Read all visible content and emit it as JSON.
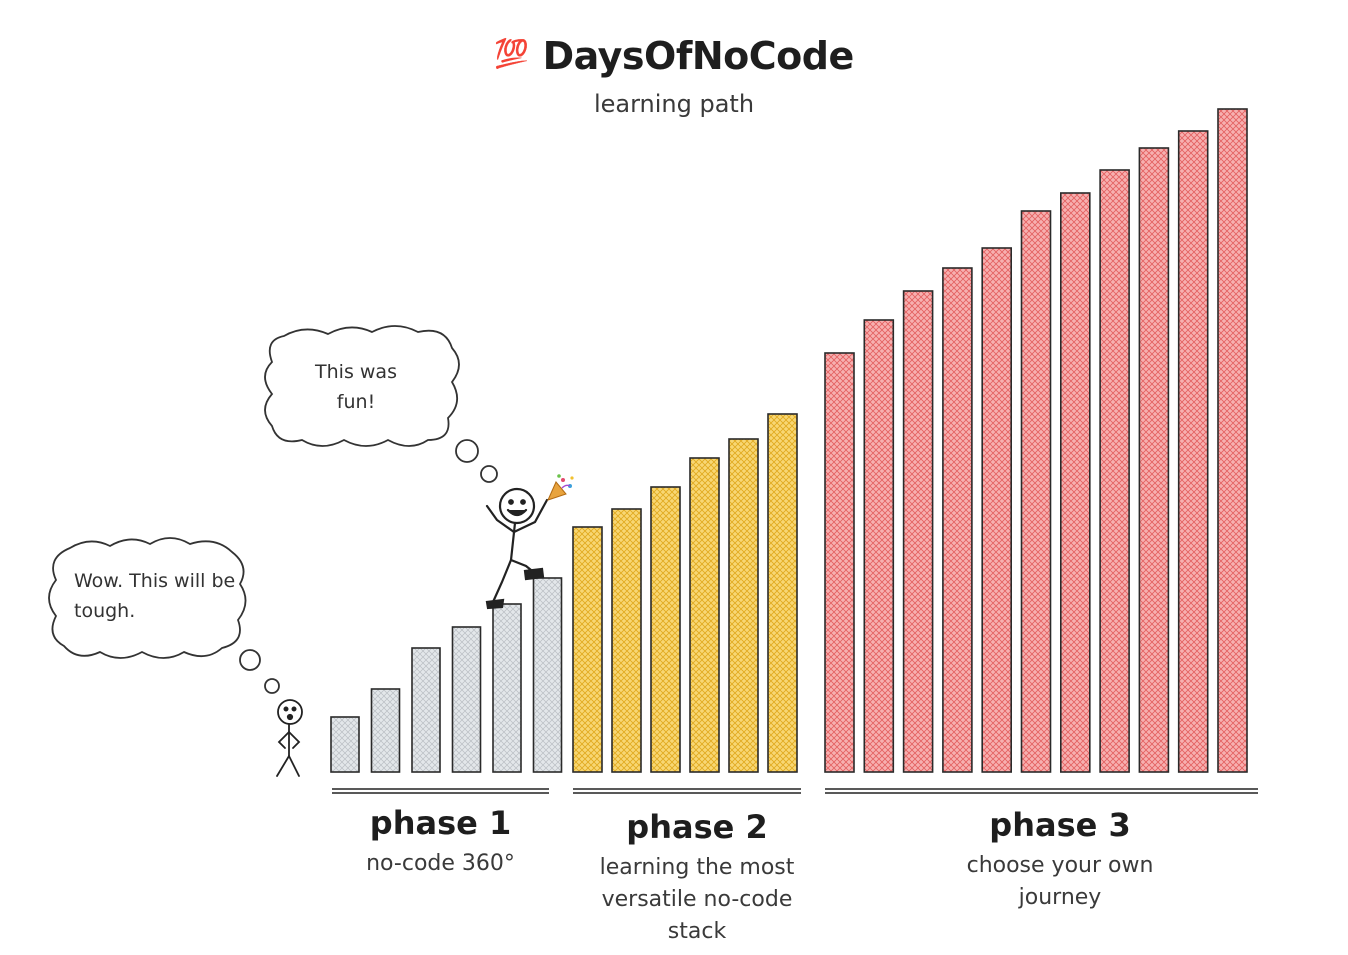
{
  "header": {
    "emoji": "💯",
    "title": "DaysOfNoCode",
    "subtitle": "learning path"
  },
  "bubbles": {
    "start": "Wow. This will be tough.",
    "top": "This was fun!"
  },
  "celebration_icon": "party-popper-icon",
  "phases": [
    {
      "label": "phase 1",
      "desc": "no-code 360°",
      "color": "#d9dde0",
      "stroke": "#555a60",
      "bars": 6
    },
    {
      "label": "phase 2",
      "desc": "learning the most versatile no-code stack",
      "color": "#f5c84c",
      "stroke": "#8a6a10",
      "bars": 6
    },
    {
      "label": "phase 3",
      "desc": "choose your own journey",
      "color": "#f28b8b",
      "stroke": "#b03a3a",
      "bars": 11
    }
  ]
}
